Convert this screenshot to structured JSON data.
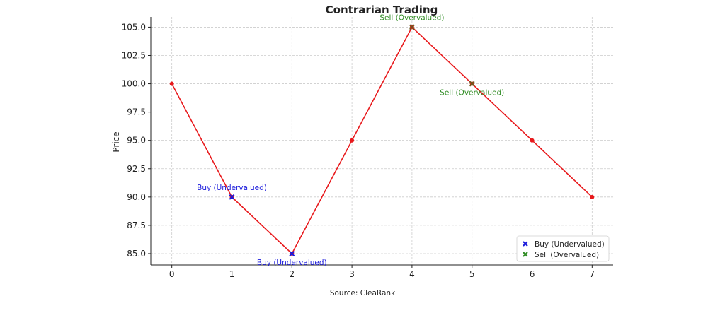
{
  "colors": {
    "line": "#e8191c",
    "buy": "#1a1adb",
    "sell": "#2e8b22",
    "sell_overlap": "#6b5a1e",
    "grid": "#cccccc",
    "axis": "#222222",
    "legend_border": "#d0d0d0"
  },
  "chart_data": {
    "type": "line",
    "title": "Contrarian Trading",
    "xlabel": "",
    "ylabel": "Price",
    "xlim": [
      -0.35,
      7.35
    ],
    "ylim": [
      84.0,
      105.9
    ],
    "x_ticks": [
      0,
      1,
      2,
      3,
      4,
      5,
      6,
      7
    ],
    "y_ticks": [
      85.0,
      87.5,
      90.0,
      92.5,
      95.0,
      97.5,
      100.0,
      102.5,
      105.0
    ],
    "y_tick_labels": [
      "85.0",
      "87.5",
      "90.0",
      "92.5",
      "95.0",
      "97.5",
      "100.0",
      "102.5",
      "105.0"
    ],
    "grid": true,
    "series": [
      {
        "x": [
          0,
          1,
          2,
          3,
          4,
          5,
          6,
          7
        ],
        "values": [
          100,
          90,
          85,
          95,
          105,
          100,
          95,
          90
        ]
      }
    ],
    "buy_points": [
      {
        "x": 1,
        "y": 90
      },
      {
        "x": 2,
        "y": 85
      }
    ],
    "sell_points": [
      {
        "x": 4,
        "y": 105
      },
      {
        "x": 5,
        "y": 100
      }
    ],
    "annotations": [
      {
        "text": "Buy (Undervalued)",
        "x": 1,
        "y": 90,
        "kind": "buy",
        "place": "above"
      },
      {
        "text": "Buy (Undervalued)",
        "x": 2,
        "y": 85,
        "kind": "buy",
        "place": "below"
      },
      {
        "text": "Sell (Overvalued)",
        "x": 4,
        "y": 105,
        "kind": "sell",
        "place": "above"
      },
      {
        "text": "Sell (Overvalued)",
        "x": 5,
        "y": 100,
        "kind": "sell",
        "place": "below"
      }
    ],
    "legend": {
      "placement": "lower-right",
      "entries": [
        {
          "label": "Buy (Undervalued)",
          "kind": "buy"
        },
        {
          "label": "Sell (Overvalued)",
          "kind": "sell"
        }
      ]
    }
  },
  "footer": {
    "source": "Source: CleaRank"
  }
}
